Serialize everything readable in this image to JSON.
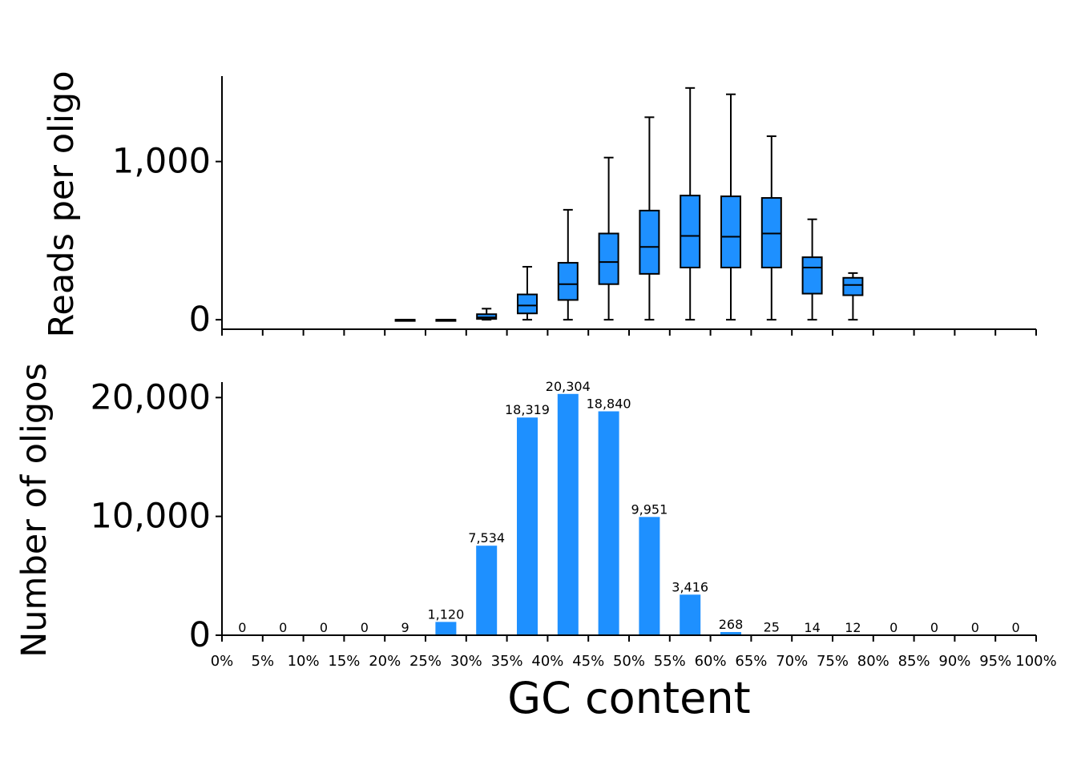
{
  "colors": {
    "fill": "#1e90ff",
    "stroke": "#000000"
  },
  "chart_data": [
    {
      "type": "box",
      "ylabel": "Reads per oligo",
      "ylim": [
        -60,
        1540
      ],
      "yticks": [
        0,
        1000
      ],
      "ytick_labels": [
        "0",
        "1,000"
      ],
      "grid": false,
      "boxes": [
        {
          "x": 22.5,
          "whislo": 0,
          "q1": 0,
          "med": 0,
          "q3": 0,
          "whishi": 0
        },
        {
          "x": 27.5,
          "whislo": 0,
          "q1": 0,
          "med": 0,
          "q3": 0,
          "whishi": 0
        },
        {
          "x": 32.5,
          "whislo": 0,
          "q1": 5,
          "med": 15,
          "q3": 35,
          "whishi": 70
        },
        {
          "x": 37.5,
          "whislo": 0,
          "q1": 40,
          "med": 90,
          "q3": 160,
          "whishi": 335
        },
        {
          "x": 42.5,
          "whislo": 0,
          "q1": 125,
          "med": 225,
          "q3": 360,
          "whishi": 695
        },
        {
          "x": 47.5,
          "whislo": 0,
          "q1": 225,
          "med": 365,
          "q3": 545,
          "whishi": 1025
        },
        {
          "x": 52.5,
          "whislo": 0,
          "q1": 290,
          "med": 460,
          "q3": 690,
          "whishi": 1280
        },
        {
          "x": 57.5,
          "whislo": 0,
          "q1": 330,
          "med": 530,
          "q3": 785,
          "whishi": 1465
        },
        {
          "x": 62.5,
          "whislo": 0,
          "q1": 330,
          "med": 525,
          "q3": 780,
          "whishi": 1425
        },
        {
          "x": 67.5,
          "whislo": 0,
          "q1": 330,
          "med": 545,
          "q3": 770,
          "whishi": 1160
        },
        {
          "x": 72.5,
          "whislo": 0,
          "q1": 165,
          "med": 330,
          "q3": 395,
          "whishi": 635
        },
        {
          "x": 77.5,
          "whislo": 0,
          "q1": 155,
          "med": 220,
          "q3": 265,
          "whishi": 295
        }
      ]
    },
    {
      "type": "bar",
      "xlabel": "GC content",
      "ylabel": "Number of oligos",
      "ylim": [
        0,
        21300
      ],
      "xlim": [
        0,
        100
      ],
      "yticks": [
        0,
        10000,
        20000
      ],
      "ytick_labels": [
        "0",
        "10,000",
        "20,000"
      ],
      "xticks": [
        0,
        5,
        10,
        15,
        20,
        25,
        30,
        35,
        40,
        45,
        50,
        55,
        60,
        65,
        70,
        75,
        80,
        85,
        90,
        95,
        100
      ],
      "xtick_labels": [
        "0%",
        "5%",
        "10%",
        "15%",
        "20%",
        "25%",
        "30%",
        "35%",
        "40%",
        "45%",
        "50%",
        "55%",
        "60%",
        "65%",
        "70%",
        "75%",
        "80%",
        "85%",
        "90%",
        "95%",
        "100%"
      ],
      "grid": false,
      "bars": [
        {
          "x": 2.5,
          "value": 0,
          "label": "0"
        },
        {
          "x": 7.5,
          "value": 0,
          "label": "0"
        },
        {
          "x": 12.5,
          "value": 0,
          "label": "0"
        },
        {
          "x": 17.5,
          "value": 0,
          "label": "0"
        },
        {
          "x": 22.5,
          "value": 9,
          "label": "9"
        },
        {
          "x": 27.5,
          "value": 1120,
          "label": "1,120"
        },
        {
          "x": 32.5,
          "value": 7534,
          "label": "7,534"
        },
        {
          "x": 37.5,
          "value": 18319,
          "label": "18,319"
        },
        {
          "x": 42.5,
          "value": 20304,
          "label": "20,304"
        },
        {
          "x": 47.5,
          "value": 18840,
          "label": "18,840"
        },
        {
          "x": 52.5,
          "value": 9951,
          "label": "9,951"
        },
        {
          "x": 57.5,
          "value": 3416,
          "label": "3,416"
        },
        {
          "x": 62.5,
          "value": 268,
          "label": "268"
        },
        {
          "x": 67.5,
          "value": 25,
          "label": "25"
        },
        {
          "x": 72.5,
          "value": 14,
          "label": "14"
        },
        {
          "x": 77.5,
          "value": 12,
          "label": "12"
        },
        {
          "x": 82.5,
          "value": 0,
          "label": "0"
        },
        {
          "x": 87.5,
          "value": 0,
          "label": "0"
        },
        {
          "x": 92.5,
          "value": 0,
          "label": "0"
        },
        {
          "x": 97.5,
          "value": 0,
          "label": "0"
        }
      ]
    }
  ]
}
